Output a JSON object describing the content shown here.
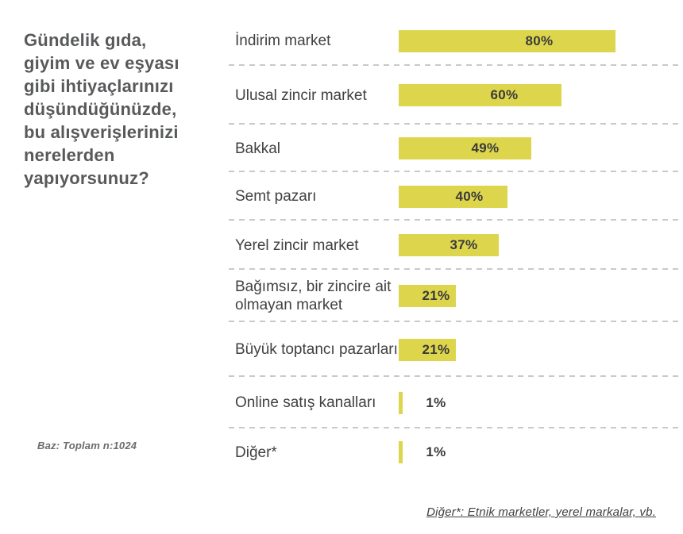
{
  "question": "Gündelik gıda,\ngiyim ve ev eşyası\ngibi ihtiyaçlarınızı\ndüşündüğünüzde,\nbu alışverişlerinizi\nnerelerden\nyapıyorsunuz?",
  "base_note": "Baz: Toplam n:1024",
  "footnote": "Diğer*: Etnik marketler, yerel markalar, vb.",
  "colors": {
    "bar": "#ddd64c",
    "question_text": "#58595b",
    "category_text": "#414042",
    "value_text": "#3a3a3c",
    "separator": "#c9c9c9",
    "background": "#ffffff"
  },
  "chart_data": {
    "type": "bar",
    "orientation": "horizontal",
    "title": "",
    "xlabel": "",
    "ylabel": "",
    "xlim": [
      0,
      100
    ],
    "unit": "%",
    "grid": "dashed-row-separators",
    "legend": "none",
    "categories": [
      "İndirim market",
      "Ulusal zincir market",
      "Bakkal",
      "Semt pazarı",
      "Yerel zincir market",
      "Bağımsız, bir zincire ait olmayan market",
      "Büyük toptancı pazarları",
      "Online satış kanalları",
      "Diğer*"
    ],
    "values": [
      80,
      60,
      49,
      40,
      37,
      21,
      21,
      1,
      1
    ],
    "value_labels": [
      "80%",
      "60%",
      "49%",
      "40%",
      "37%",
      "21%",
      "21%",
      "1%",
      "1%"
    ]
  }
}
